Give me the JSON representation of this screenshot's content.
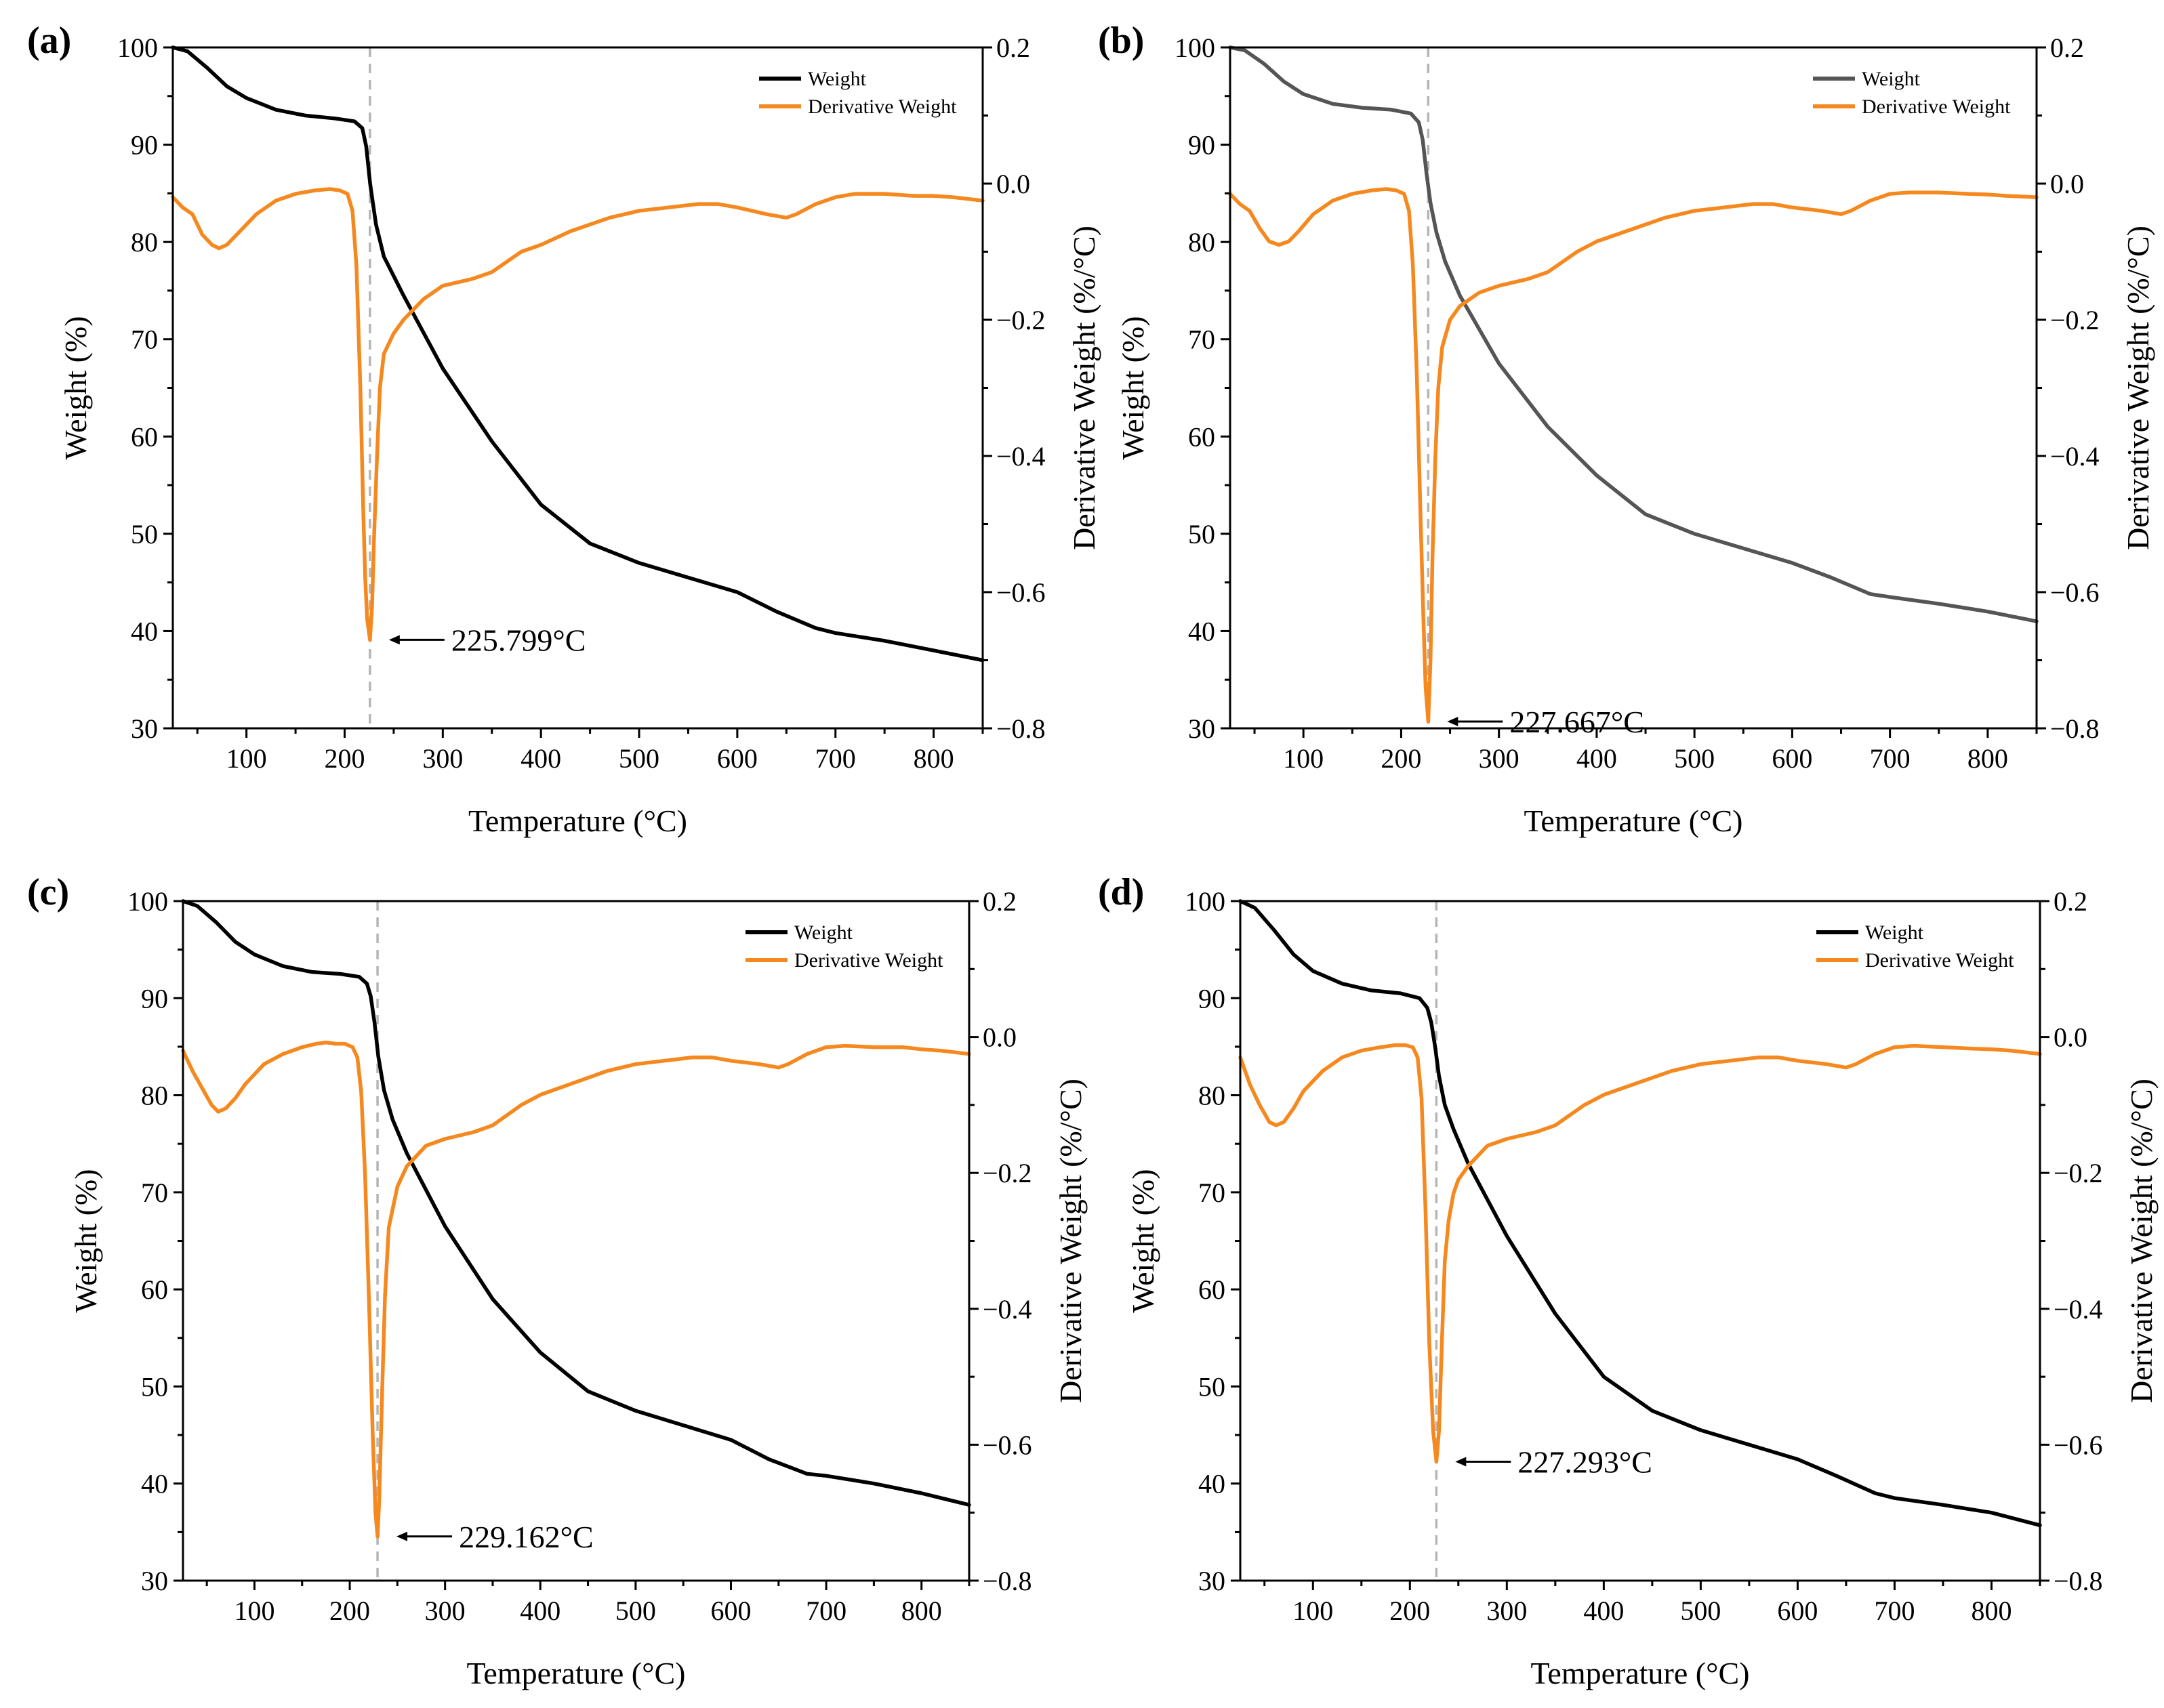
{
  "figure": {
    "background": "#ffffff"
  },
  "chart_data": [
    {
      "panel": "(a)",
      "type": "line",
      "title": "",
      "xlabel": "Temperature (°C)",
      "ylabel_left": "Weight (%)",
      "ylabel_right": "Derivative Weight (%/°C)",
      "xlim": [
        25,
        850
      ],
      "ylim_left": [
        30,
        100
      ],
      "ylim_right": [
        -0.8,
        0.2
      ],
      "xticks": [
        100,
        200,
        300,
        400,
        500,
        600,
        700,
        800
      ],
      "yticks_left": [
        30,
        40,
        50,
        60,
        70,
        80,
        90,
        100
      ],
      "yticks_right": [
        -0.8,
        -0.6,
        -0.4,
        -0.2,
        0.0,
        0.2
      ],
      "yticklabels_right": [
        "−0.8",
        "−0.6",
        "−0.4",
        "−0.2",
        "0.0",
        "0.2"
      ],
      "legend": {
        "placement": "top-right",
        "entries": [
          "Weight",
          "Derivative Weight"
        ]
      },
      "peak": {
        "x": 225.799,
        "y": -0.67,
        "label": "225.799°C"
      },
      "series": [
        {
          "name": "Weight",
          "axis": "left",
          "color": "#000000",
          "x": [
            25,
            40,
            60,
            80,
            100,
            130,
            160,
            190,
            210,
            218,
            222,
            226,
            232,
            240,
            260,
            300,
            350,
            400,
            450,
            500,
            550,
            600,
            640,
            680,
            700,
            750,
            800,
            850
          ],
          "y": [
            100,
            99.6,
            97.9,
            96.0,
            94.8,
            93.6,
            93.0,
            92.7,
            92.4,
            91.7,
            89.8,
            86.0,
            81.8,
            78.5,
            74.5,
            67.0,
            59.5,
            53.0,
            49.0,
            47.0,
            45.5,
            44.0,
            42.0,
            40.3,
            39.8,
            39.0,
            38.0,
            37.0
          ]
        },
        {
          "name": "Derivative Weight",
          "axis": "right",
          "color": "#f5891f",
          "x": [
            25,
            35,
            45,
            55,
            65,
            72,
            80,
            90,
            110,
            130,
            150,
            170,
            185,
            195,
            203,
            208,
            212,
            216,
            219,
            221,
            223,
            225.8,
            228,
            230,
            233,
            236,
            240,
            250,
            260,
            280,
            300,
            330,
            350,
            380,
            400,
            430,
            470,
            500,
            530,
            560,
            580,
            600,
            630,
            650,
            660,
            680,
            700,
            720,
            750,
            780,
            800,
            820,
            850
          ],
          "y": [
            -0.02,
            -0.035,
            -0.045,
            -0.075,
            -0.09,
            -0.095,
            -0.09,
            -0.075,
            -0.045,
            -0.025,
            -0.015,
            -0.01,
            -0.008,
            -0.01,
            -0.015,
            -0.04,
            -0.12,
            -0.3,
            -0.48,
            -0.58,
            -0.64,
            -0.67,
            -0.62,
            -0.52,
            -0.4,
            -0.3,
            -0.25,
            -0.22,
            -0.2,
            -0.17,
            -0.15,
            -0.14,
            -0.13,
            -0.1,
            -0.09,
            -0.07,
            -0.05,
            -0.04,
            -0.035,
            -0.03,
            -0.03,
            -0.035,
            -0.045,
            -0.05,
            -0.045,
            -0.03,
            -0.02,
            -0.015,
            -0.015,
            -0.018,
            -0.018,
            -0.02,
            -0.025
          ]
        }
      ]
    },
    {
      "panel": "(b)",
      "type": "line",
      "title": "",
      "xlabel": "Temperature (°C)",
      "ylabel_left": "Weight (%)",
      "ylabel_right": "Derivative Weight (%/°C)",
      "xlim": [
        25,
        850
      ],
      "ylim_left": [
        30,
        100
      ],
      "ylim_right": [
        -0.8,
        0.2
      ],
      "xticks": [
        100,
        200,
        300,
        400,
        500,
        600,
        700,
        800
      ],
      "yticks_left": [
        30,
        40,
        50,
        60,
        70,
        80,
        90,
        100
      ],
      "yticks_right": [
        -0.8,
        -0.6,
        -0.4,
        -0.2,
        0.0,
        0.2
      ],
      "yticklabels_right": [
        "−0.8",
        "−0.6",
        "−0.4",
        "−0.2",
        "0.0",
        "0.2"
      ],
      "legend": {
        "placement": "top-right",
        "entries": [
          "Weight",
          "Derivative Weight"
        ]
      },
      "peak": {
        "x": 227.667,
        "y": -0.79,
        "label": "227.667°C"
      },
      "series": [
        {
          "name": "Weight",
          "axis": "left",
          "color": "#555555",
          "x": [
            25,
            40,
            60,
            80,
            100,
            130,
            160,
            190,
            210,
            218,
            222,
            226,
            230,
            236,
            245,
            260,
            300,
            350,
            400,
            450,
            500,
            550,
            600,
            640,
            680,
            700,
            750,
            800,
            850
          ],
          "y": [
            100,
            99.7,
            98.3,
            96.5,
            95.2,
            94.2,
            93.8,
            93.6,
            93.2,
            92.3,
            90.5,
            87.0,
            84.0,
            81.0,
            78.0,
            74.5,
            67.5,
            61.0,
            56.0,
            52.0,
            50.0,
            48.5,
            47.0,
            45.5,
            43.8,
            43.5,
            42.8,
            42.0,
            41.0
          ]
        },
        {
          "name": "Derivative Weight",
          "axis": "right",
          "color": "#f5891f",
          "x": [
            25,
            35,
            45,
            55,
            65,
            75,
            85,
            95,
            110,
            130,
            150,
            170,
            185,
            195,
            203,
            208,
            212,
            216,
            220,
            223,
            225,
            227.7,
            230,
            232,
            235,
            238,
            242,
            250,
            260,
            280,
            300,
            330,
            350,
            380,
            400,
            430,
            470,
            500,
            530,
            560,
            580,
            600,
            630,
            650,
            660,
            680,
            700,
            720,
            750,
            780,
            800,
            820,
            850
          ],
          "y": [
            -0.015,
            -0.03,
            -0.04,
            -0.065,
            -0.085,
            -0.09,
            -0.085,
            -0.07,
            -0.045,
            -0.025,
            -0.015,
            -0.01,
            -0.008,
            -0.01,
            -0.015,
            -0.04,
            -0.12,
            -0.28,
            -0.5,
            -0.65,
            -0.74,
            -0.79,
            -0.7,
            -0.55,
            -0.4,
            -0.3,
            -0.24,
            -0.2,
            -0.18,
            -0.16,
            -0.15,
            -0.14,
            -0.13,
            -0.1,
            -0.085,
            -0.07,
            -0.05,
            -0.04,
            -0.035,
            -0.03,
            -0.03,
            -0.035,
            -0.04,
            -0.045,
            -0.04,
            -0.025,
            -0.015,
            -0.013,
            -0.013,
            -0.015,
            -0.016,
            -0.018,
            -0.02
          ]
        }
      ]
    },
    {
      "panel": "(c)",
      "type": "line",
      "title": "",
      "xlabel": "Temperature (°C)",
      "ylabel_left": "Weight (%)",
      "ylabel_right": "Derivative Weight (%/°C)",
      "xlim": [
        25,
        850
      ],
      "ylim_left": [
        30,
        100
      ],
      "ylim_right": [
        -0.8,
        0.2
      ],
      "xticks": [
        100,
        200,
        300,
        400,
        500,
        600,
        700,
        800
      ],
      "yticks_left": [
        30,
        40,
        50,
        60,
        70,
        80,
        90,
        100
      ],
      "yticks_right": [
        -0.8,
        -0.6,
        -0.4,
        -0.2,
        0.0,
        0.2
      ],
      "yticklabels_right": [
        "−0.8",
        "−0.6",
        "−0.4",
        "−0.2",
        "0.0",
        "0.2"
      ],
      "legend": {
        "placement": "top-right",
        "entries": [
          "Weight",
          "Derivative Weight"
        ]
      },
      "peak": {
        "x": 229.162,
        "y": -0.735,
        "label": "229.162°C"
      },
      "series": [
        {
          "name": "Weight",
          "axis": "left",
          "color": "#000000",
          "x": [
            25,
            40,
            60,
            80,
            100,
            130,
            160,
            190,
            210,
            218,
            222,
            226,
            230,
            236,
            245,
            260,
            300,
            350,
            400,
            450,
            500,
            550,
            600,
            640,
            680,
            700,
            750,
            800,
            850
          ],
          "y": [
            100,
            99.5,
            97.8,
            95.8,
            94.5,
            93.3,
            92.7,
            92.5,
            92.2,
            91.5,
            90.2,
            87.5,
            84.0,
            80.5,
            77.5,
            74.0,
            66.5,
            59.0,
            53.5,
            49.5,
            47.5,
            46.0,
            44.5,
            42.5,
            41.0,
            40.8,
            40.0,
            39.0,
            37.8
          ]
        },
        {
          "name": "Derivative Weight",
          "axis": "right",
          "color": "#f5891f",
          "x": [
            25,
            35,
            45,
            55,
            62,
            70,
            80,
            90,
            110,
            130,
            150,
            165,
            175,
            185,
            195,
            203,
            208,
            212,
            216,
            220,
            224,
            227,
            229.2,
            231,
            234,
            237,
            241,
            250,
            260,
            280,
            300,
            330,
            350,
            380,
            400,
            430,
            470,
            500,
            530,
            560,
            580,
            600,
            630,
            650,
            660,
            680,
            700,
            720,
            750,
            780,
            800,
            820,
            850
          ],
          "y": [
            -0.02,
            -0.05,
            -0.075,
            -0.1,
            -0.11,
            -0.105,
            -0.09,
            -0.07,
            -0.04,
            -0.025,
            -0.015,
            -0.01,
            -0.008,
            -0.01,
            -0.01,
            -0.015,
            -0.03,
            -0.08,
            -0.2,
            -0.38,
            -0.58,
            -0.7,
            -0.735,
            -0.68,
            -0.52,
            -0.38,
            -0.28,
            -0.22,
            -0.19,
            -0.16,
            -0.15,
            -0.14,
            -0.13,
            -0.1,
            -0.085,
            -0.07,
            -0.05,
            -0.04,
            -0.035,
            -0.03,
            -0.03,
            -0.035,
            -0.04,
            -0.045,
            -0.04,
            -0.025,
            -0.015,
            -0.013,
            -0.015,
            -0.015,
            -0.018,
            -0.02,
            -0.025
          ]
        }
      ]
    },
    {
      "panel": "(d)",
      "type": "line",
      "title": "",
      "xlabel": "Temperature (°C)",
      "ylabel_left": "Weight (%)",
      "ylabel_right": "Derivative Weight (%/°C)",
      "xlim": [
        25,
        850
      ],
      "ylim_left": [
        30,
        100
      ],
      "ylim_right": [
        -0.8,
        0.2
      ],
      "xticks": [
        100,
        200,
        300,
        400,
        500,
        600,
        700,
        800
      ],
      "yticks_left": [
        30,
        40,
        50,
        60,
        70,
        80,
        90,
        100
      ],
      "yticks_right": [
        -0.8,
        -0.6,
        -0.4,
        -0.2,
        0.0,
        0.2
      ],
      "yticklabels_right": [
        "−0.8",
        "−0.6",
        "−0.4",
        "−0.2",
        "0.0",
        "0.2"
      ],
      "legend": {
        "placement": "top-right",
        "entries": [
          "Weight",
          "Derivative Weight"
        ]
      },
      "peak": {
        "x": 227.293,
        "y": -0.625,
        "label": "227.293°C"
      },
      "series": [
        {
          "name": "Weight",
          "axis": "left",
          "color": "#000000",
          "x": [
            25,
            40,
            60,
            80,
            100,
            130,
            160,
            190,
            210,
            218,
            222,
            226,
            230,
            236,
            245,
            260,
            300,
            350,
            400,
            450,
            500,
            550,
            600,
            640,
            680,
            700,
            750,
            800,
            850
          ],
          "y": [
            100,
            99.3,
            97.0,
            94.5,
            92.8,
            91.5,
            90.8,
            90.5,
            90.0,
            89.0,
            87.5,
            85.0,
            82.0,
            79.0,
            76.5,
            73.0,
            65.5,
            57.5,
            51.0,
            47.5,
            45.5,
            44.0,
            42.5,
            40.8,
            39.0,
            38.5,
            37.8,
            37.0,
            35.7
          ]
        },
        {
          "name": "Derivative Weight",
          "axis": "right",
          "color": "#f5891f",
          "x": [
            25,
            35,
            45,
            55,
            62,
            70,
            80,
            90,
            110,
            130,
            150,
            170,
            185,
            195,
            203,
            208,
            212,
            216,
            220,
            224,
            227.3,
            230,
            233,
            236,
            240,
            245,
            250,
            260,
            280,
            300,
            330,
            350,
            380,
            400,
            430,
            470,
            500,
            530,
            560,
            580,
            600,
            630,
            650,
            660,
            680,
            700,
            720,
            750,
            780,
            800,
            820,
            850
          ],
          "y": [
            -0.03,
            -0.07,
            -0.1,
            -0.125,
            -0.13,
            -0.125,
            -0.105,
            -0.08,
            -0.05,
            -0.03,
            -0.02,
            -0.015,
            -0.012,
            -0.012,
            -0.015,
            -0.03,
            -0.09,
            -0.25,
            -0.45,
            -0.58,
            -0.625,
            -0.58,
            -0.45,
            -0.33,
            -0.27,
            -0.23,
            -0.21,
            -0.19,
            -0.16,
            -0.15,
            -0.14,
            -0.13,
            -0.1,
            -0.085,
            -0.07,
            -0.05,
            -0.04,
            -0.035,
            -0.03,
            -0.03,
            -0.035,
            -0.04,
            -0.045,
            -0.04,
            -0.025,
            -0.015,
            -0.013,
            -0.015,
            -0.017,
            -0.018,
            -0.02,
            -0.025
          ]
        }
      ]
    }
  ]
}
